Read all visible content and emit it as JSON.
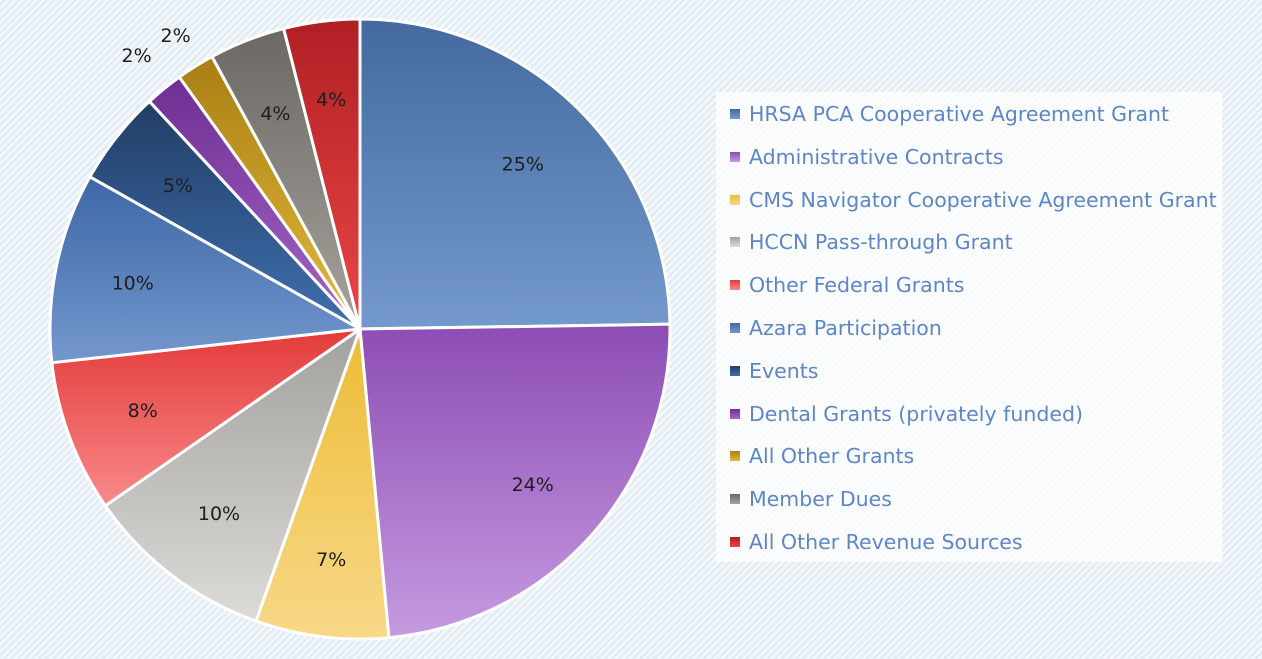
{
  "chart_data": {
    "type": "pie",
    "start_angle_deg": 0,
    "direction": "clockwise",
    "legend_position": "right",
    "slices": [
      {
        "name": "HRSA PCA Cooperative Agreement Grant",
        "value": 25,
        "label": "25%",
        "color_light": "#7499cd",
        "color_dark": "#43699f"
      },
      {
        "name": "Administrative Contracts",
        "value": 24,
        "label": "24%",
        "color_light": "#c59be0",
        "color_dark": "#8c4cb4"
      },
      {
        "name": "CMS Navigator Cooperative Agreement Grant",
        "value": 7,
        "label": "7%",
        "color_light": "#f8d888",
        "color_dark": "#ecbc35"
      },
      {
        "name": "HCCN Pass-through Grant",
        "value": 10,
        "label": "10%",
        "color_light": "#dcdbd7",
        "color_dark": "#a3a19d"
      },
      {
        "name": "Other Federal Grants",
        "value": 8,
        "label": "8%",
        "color_light": "#f88a8a",
        "color_dark": "#e43a3a"
      },
      {
        "name": "Azara Participation",
        "value": 10,
        "label": "10%",
        "color_light": "#7397cd",
        "color_dark": "#3e67a6"
      },
      {
        "name": "Events",
        "value": 5,
        "label": "5%",
        "color_light": "#3f6fae",
        "color_dark": "#223e66"
      },
      {
        "name": "Dental Grants (privately funded)",
        "value": 2,
        "label": "2%",
        "color_light": "#a468c8",
        "color_dark": "#6e2e93"
      },
      {
        "name": "All Other Grants",
        "value": 2,
        "label": "2%",
        "color_light": "#e3b93b",
        "color_dark": "#a97f13"
      },
      {
        "name": "Member Dues",
        "value": 4,
        "label": "4%",
        "color_light": "#a6a39d",
        "color_dark": "#6b6863"
      },
      {
        "name": "All Other Revenue Sources",
        "value": 4,
        "label": "4%",
        "color_light": "#ec4646",
        "color_dark": "#b01f24"
      }
    ]
  }
}
